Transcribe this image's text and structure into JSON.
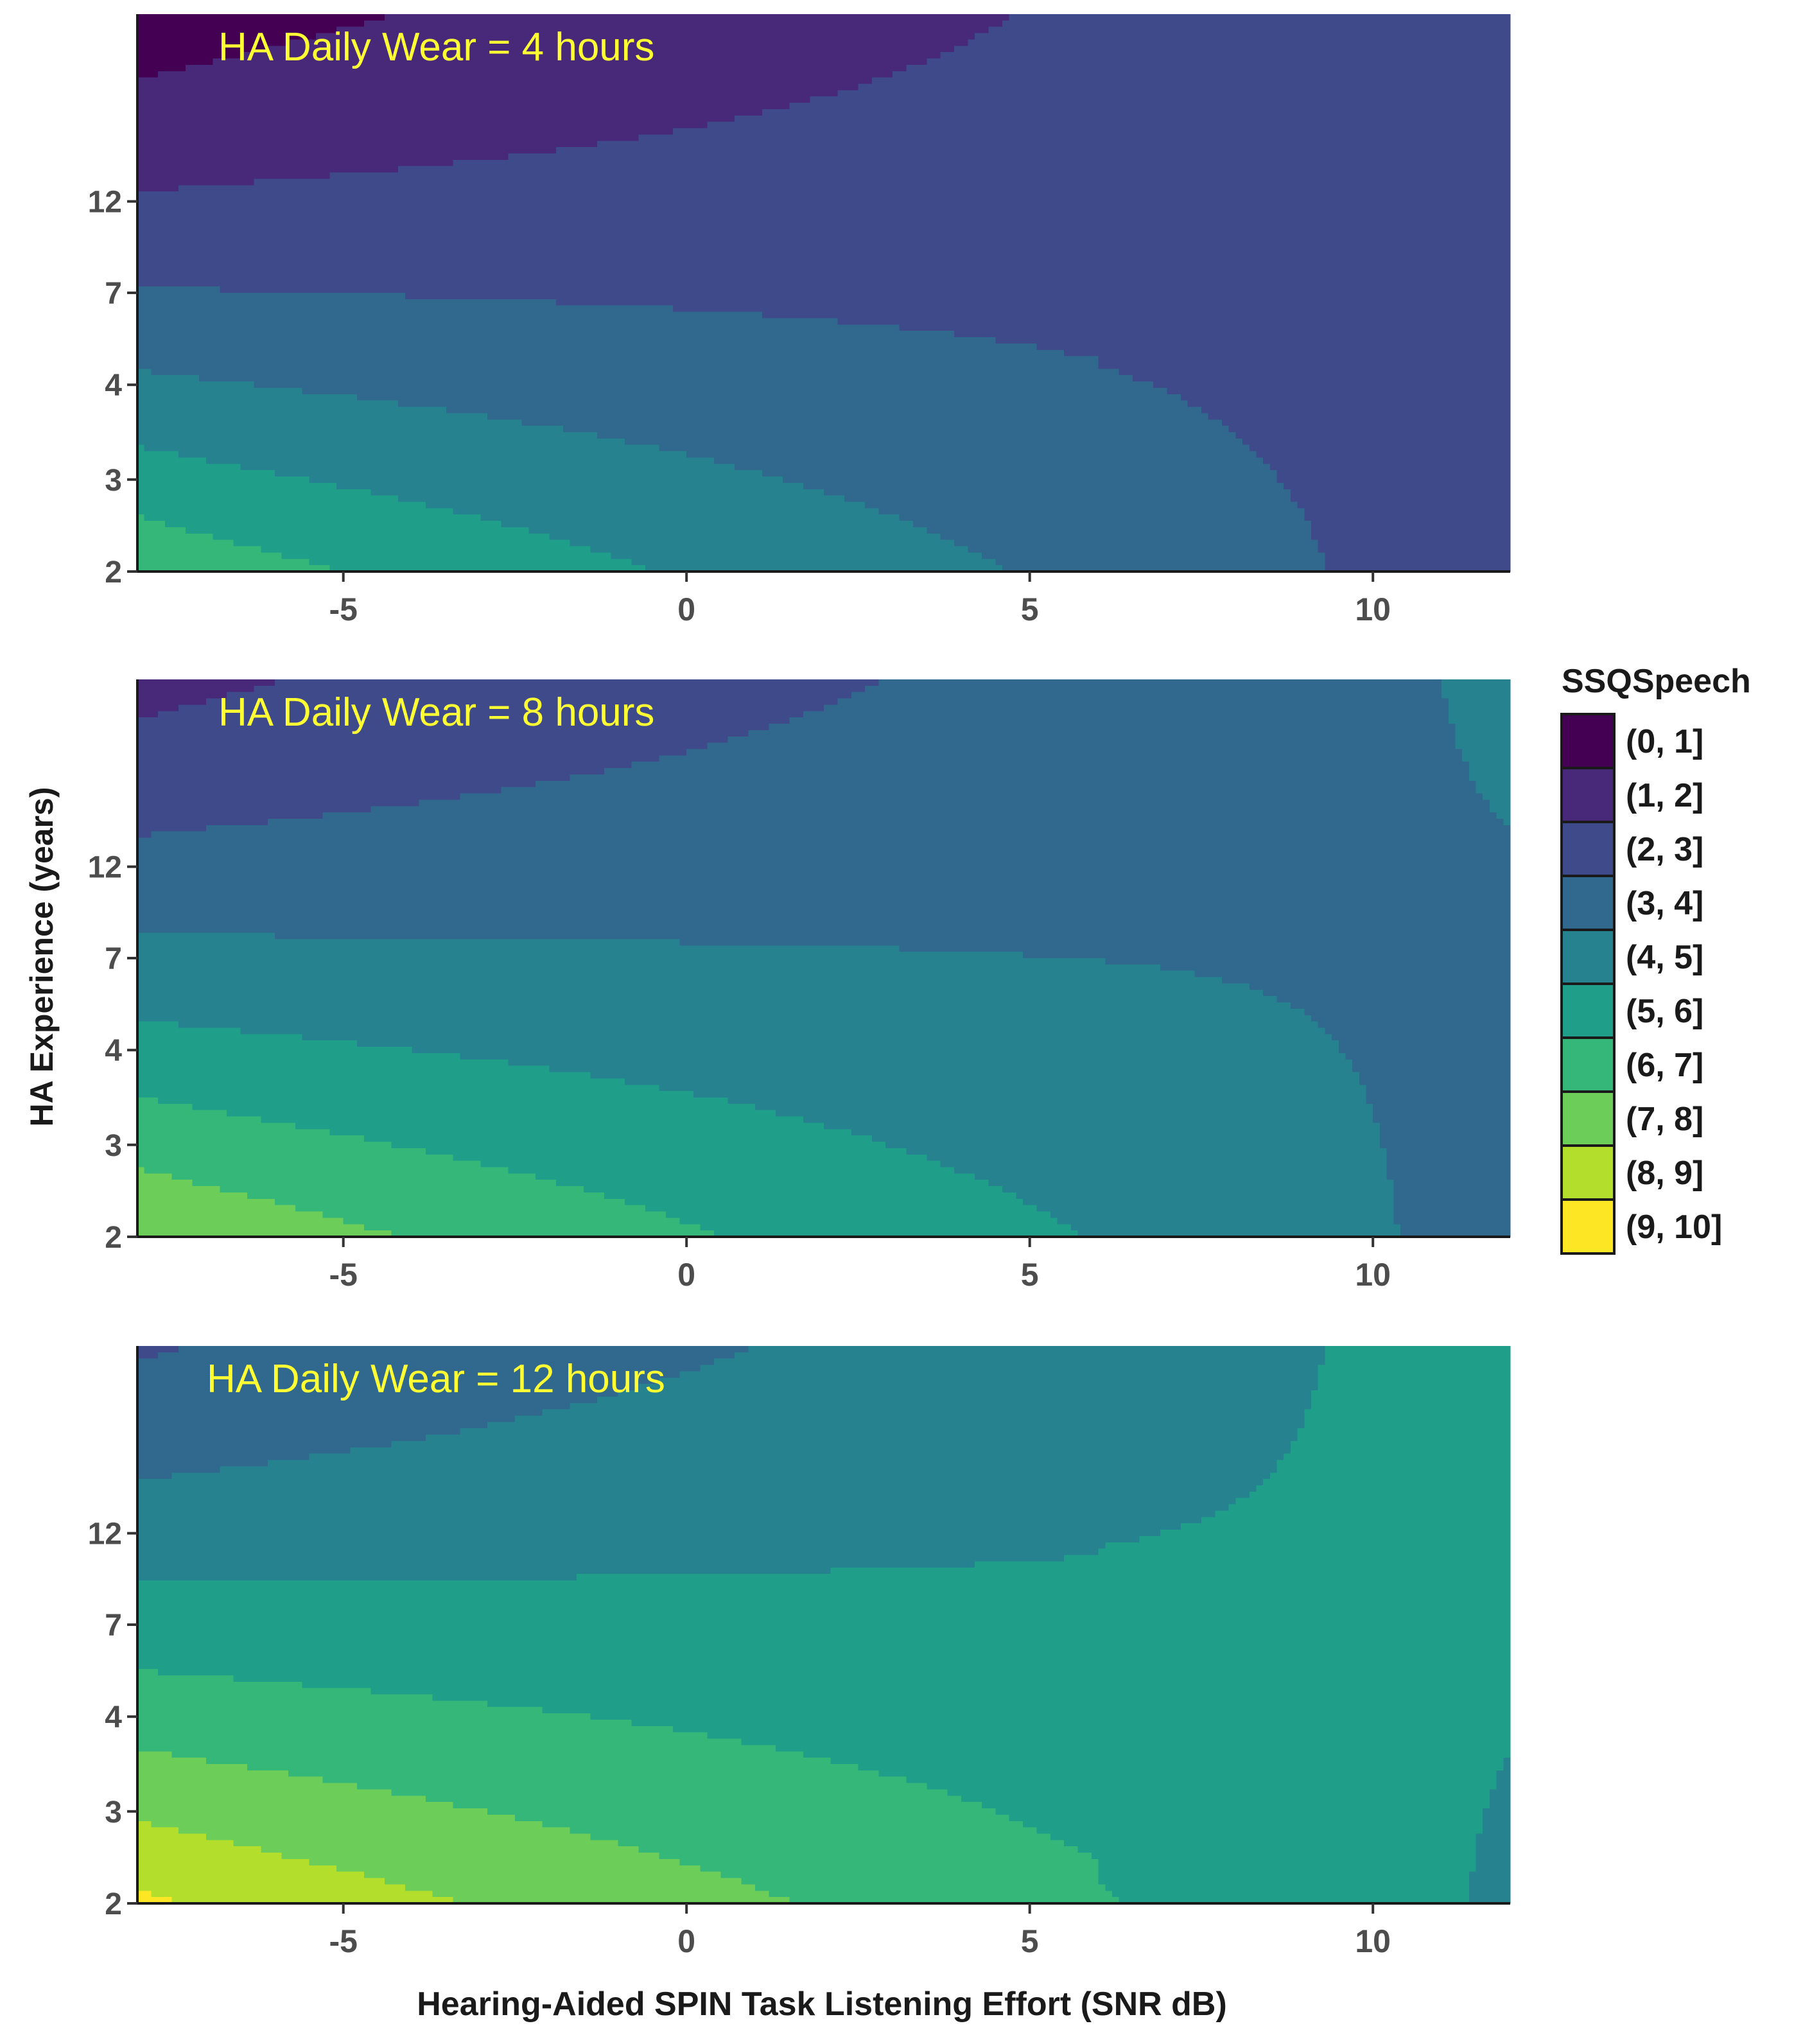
{
  "chart_data": {
    "type": "heatmap",
    "xlabel": "Hearing-Aided SPIN Task Listening Effort (SNR dB)",
    "ylabel": "HA Experience (years)",
    "xlim": [
      -8,
      12
    ],
    "x_ticks": [
      "-5",
      "0",
      "5",
      "10"
    ],
    "x_tick_values": [
      -5,
      0,
      5,
      10
    ],
    "y_ticks": [
      "2",
      "3",
      "4",
      "7",
      "12"
    ],
    "legend": {
      "title": "SSQSpeech",
      "placement": "right",
      "bins": [
        {
          "label": "(0, 1]",
          "color": "#440154"
        },
        {
          "label": "(1, 2]",
          "color": "#482878"
        },
        {
          "label": "(2, 3]",
          "color": "#3E4A89"
        },
        {
          "label": "(3, 4]",
          "color": "#31688E"
        },
        {
          "label": "(4, 5]",
          "color": "#26828E"
        },
        {
          "label": "(5, 6]",
          "color": "#1F9E89"
        },
        {
          "label": "(6, 7]",
          "color": "#35B779"
        },
        {
          "label": "(7, 8]",
          "color": "#6DCD59"
        },
        {
          "label": "(8, 9]",
          "color": "#B4DE2C"
        },
        {
          "label": "(9, 10]",
          "color": "#FDE725"
        }
      ]
    },
    "na_color": "#bebebe",
    "panels": [
      {
        "label": "HA Daily Wear = 4 hours",
        "offset": 0.0
      },
      {
        "label": "HA Daily Wear = 8 hours",
        "offset": 1.2
      },
      {
        "label": "HA Daily Wear = 12 hours",
        "offset": 2.4
      }
    ]
  }
}
